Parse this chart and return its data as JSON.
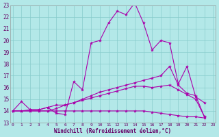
{
  "xlabel": "Windchill (Refroidissement éolien,°C)",
  "bg_color": "#b3e8e8",
  "grid_color": "#88cccc",
  "line_color": "#aa00aa",
  "xmin": 0,
  "xmax": 23,
  "ymin": 13,
  "ymax": 23,
  "series": [
    [
      14.0,
      14.8,
      14.1,
      14.1,
      14.3,
      13.8,
      13.7,
      16.5,
      15.8,
      19.8,
      20.0,
      21.5,
      22.5,
      22.2,
      23.2,
      21.5,
      19.2,
      20.0,
      19.8,
      16.3,
      17.8,
      15.2,
      14.7
    ],
    [
      14.0,
      14.0,
      14.1,
      14.1,
      14.3,
      14.5,
      14.5,
      14.7,
      15.0,
      15.3,
      15.6,
      15.8,
      16.0,
      16.2,
      16.4,
      16.6,
      16.8,
      17.0,
      17.8,
      16.2,
      15.5,
      15.3,
      13.5
    ],
    [
      14.0,
      14.0,
      14.0,
      14.0,
      14.0,
      14.2,
      14.5,
      14.7,
      14.9,
      15.1,
      15.3,
      15.5,
      15.7,
      15.9,
      16.1,
      16.1,
      16.0,
      16.1,
      16.2,
      15.8,
      15.4,
      15.0,
      13.5
    ],
    [
      14.0,
      14.0,
      14.0,
      14.0,
      14.0,
      14.0,
      14.0,
      14.0,
      14.0,
      14.0,
      14.0,
      14.0,
      14.0,
      14.0,
      14.0,
      14.0,
      13.9,
      13.8,
      13.7,
      13.6,
      13.5,
      13.5,
      13.4
    ]
  ],
  "x_ticks": [
    0,
    1,
    2,
    3,
    4,
    5,
    6,
    7,
    8,
    9,
    10,
    11,
    12,
    13,
    14,
    15,
    16,
    17,
    18,
    19,
    20,
    21,
    22,
    23
  ],
  "y_ticks": [
    13,
    14,
    15,
    16,
    17,
    18,
    19,
    20,
    21,
    22,
    23
  ]
}
